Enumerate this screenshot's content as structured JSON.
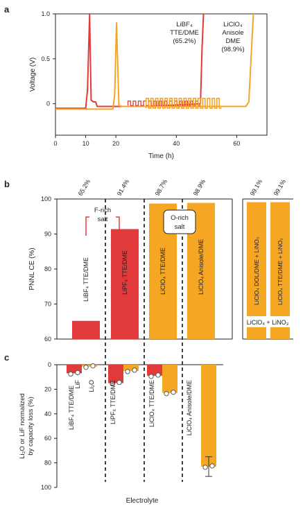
{
  "colors": {
    "red": "#e23a3a",
    "orange": "#f5a623",
    "dark": "#222222"
  },
  "chart_data": [
    {
      "panel": "a",
      "type": "line",
      "xlabel": "Time (h)",
      "ylabel": "Voltage (V)",
      "xlim": [
        0,
        70
      ],
      "ylim": [
        -0.35,
        1.0
      ],
      "xticks": [
        "0",
        "10",
        "20",
        "40",
        "60"
      ],
      "xtick_values": [
        0,
        10,
        20,
        40,
        60
      ],
      "yticks": [
        "1.0",
        "0.5",
        "0"
      ],
      "ytick_values": [
        1.0,
        0.5,
        0
      ],
      "annotations": [
        {
          "lines": [
            "LiBF₄",
            "TTE/DME",
            "(65.2%)"
          ],
          "color": "dark"
        },
        {
          "lines": [
            "LiClO₄",
            "Anisole",
            "DME",
            "(98.9%)"
          ],
          "color": "dark"
        }
      ],
      "series": [
        {
          "color": "red",
          "x": [
            0,
            10,
            10.6,
            11.3,
            11.8,
            12.6,
            13.3,
            13.8,
            30,
            48,
            48.5,
            49
          ],
          "y": [
            -0.05,
            -0.05,
            0.15,
            1.0,
            0.04,
            0.02,
            0.02,
            -0.03,
            -0.03,
            0.0,
            0.6,
            1.0
          ]
        },
        {
          "color": "orange",
          "x": [
            0,
            19,
            19.6,
            20.2,
            21,
            22,
            30,
            55,
            63,
            64,
            65.5
          ],
          "y": [
            -0.06,
            -0.06,
            0.1,
            0.9,
            -0.02,
            -0.03,
            -0.03,
            -0.03,
            -0.03,
            0.02,
            1.0
          ]
        }
      ]
    },
    {
      "panel": "b",
      "type": "bar",
      "ylabel": "PNNL CE (%)",
      "ylim": [
        60,
        100
      ],
      "yticks": [
        "60",
        "70",
        "80",
        "90",
        "100"
      ],
      "ytick_values": [
        60,
        70,
        80,
        90,
        100
      ],
      "categories": [
        "LiBF₄ TTE/DME",
        "LiPF₆ TTE/DME",
        "LiClO₄ TTE/DME",
        "LiClO₄ Anisole/DME"
      ],
      "values": [
        65.2,
        91.4,
        98.7,
        98.9
      ],
      "value_labels": [
        "65.2%",
        "91.4%",
        "98.7%",
        "98.9%"
      ],
      "bar_colors": [
        "red",
        "red",
        "orange",
        "orange"
      ],
      "group_labels": [
        {
          "text": [
            "F-rich",
            "salt"
          ]
        },
        {
          "text": [
            "O-rich",
            "salt"
          ]
        }
      ],
      "inset": {
        "categories": [
          "LiClO₄ DOL/DME + LiNO₃",
          "LiClO₄ TTE/DME + LiNO₃"
        ],
        "values": [
          99.1,
          99.1
        ],
        "value_labels": [
          "99.1%",
          "99.1%"
        ],
        "caption": "LiClO₄ + LiNO₃"
      }
    },
    {
      "panel": "c",
      "type": "bar",
      "ylabel": [
        "Li₂O or LiF normalized",
        "by capacity loss (%)"
      ],
      "xlabel": "Electrolyte",
      "ylim": [
        0,
        100
      ],
      "yticks": [
        "0",
        "20",
        "40",
        "60",
        "80",
        "100"
      ],
      "ytick_values": [
        0,
        20,
        40,
        60,
        80,
        100
      ],
      "groups": [
        {
          "name": "LiBF₄ TTE/DME",
          "sublabels": [
            "LiF",
            "Li₂O"
          ],
          "lif": 7,
          "li2o": 1.5
        },
        {
          "name": "LiPF₆ TTE/DME",
          "lif": 15,
          "li2o": 5
        },
        {
          "name": "LiClO₄ TTE/DME",
          "lif": 9,
          "li2o": 23
        },
        {
          "name": "LiClO₄ Anisole/DME",
          "lif": 0,
          "li2o": 83
        }
      ]
    }
  ]
}
